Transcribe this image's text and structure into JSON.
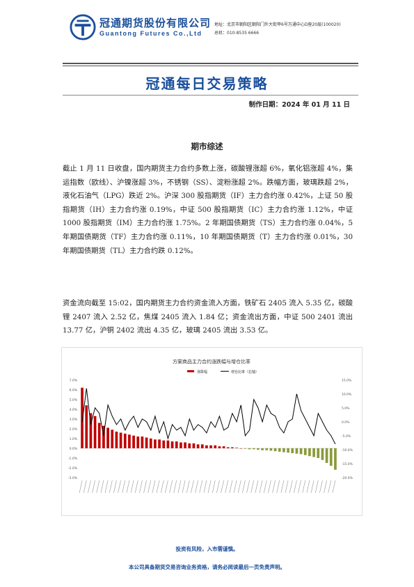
{
  "header": {
    "company_cn": "冠通期货股份有限公司",
    "company_en": "Guantong Futures Co.,Ltd",
    "address": "地址：北京市朝阳区朝阳门外大街甲6号万通中心D座20层(100020)",
    "phone": "总机：010-8535 6666"
  },
  "report_title": "冠通每日交易策略",
  "date_line": "制作日期：2024 年 01 月 11 日",
  "section_title": "期市综述",
  "paragraphs": [
    "截止 1 月 11 日收盘，国内期货主力合约多数上涨，碳酸锂涨超 6%，氧化铝涨超 4%，集运指数（欧线）、沪镍涨超 3%，不锈钢（SS）、淀粉涨超 2%。跌幅方面，玻璃跌超 2%，液化石油气（LPG）跌近 2%。沪深 300 股指期货（IF）主力合约涨 0.42%，上证 50 股指期货（IH）主力合约涨 0.19%，中证 500 股指期货（IC）主力合约涨 1.12%，中证 1000 股指期货（IM）主力合约涨 1.75%。2 年期国债期货（TS）主力合约涨 0.04%，5 年期国债期货（TF）主力合约涨 0.11%，10 年期国债期货（T）主力合约涨 0.01%，30 年期国债期货（TL）主力合约跌 0.12%。",
    "资金流向截至 15:02，国内期货主力合约资金流入方面，铁矿石 2405 流入 5.35 亿，碳酸锂 2407 流入 2.52 亿，焦煤 2405 流入 1.84 亿；资金流出方面，中证 500 2401 流出 13.77 亿，沪铜 2402 流出 4.35 亿，玻璃 2405 流出 3.53 亿。"
  ],
  "chart_data": {
    "type": "bar",
    "title": "方案商品主力合约涨跌幅与增仓比率",
    "legend": [
      "涨跌幅",
      "增仓比率（右轴）"
    ],
    "left_ticks": [
      "7.0%",
      "6.0%",
      "5.0%",
      "4.0%",
      "3.0%",
      "2.0%",
      "1.0%",
      "0.0%",
      "-1.0%",
      "-2.0%",
      "-3.0%"
    ],
    "right_ticks": [
      "15.0%",
      "10.0%",
      "5.0%",
      "0.0%",
      "-5.0%",
      "-10.0%",
      "-15.0%",
      "-20.0%"
    ],
    "ylim": [
      -3,
      7
    ],
    "y2lim": [
      -20,
      15
    ],
    "values": [
      6.2,
      4.4,
      3.6,
      3.3,
      2.6,
      2.3,
      2.1,
      1.9,
      1.7,
      1.6,
      1.5,
      1.4,
      1.3,
      1.2,
      1.2,
      1.1,
      1.0,
      0.9,
      0.9,
      0.8,
      0.8,
      0.7,
      0.7,
      0.6,
      0.6,
      0.5,
      0.5,
      0.4,
      0.4,
      0.3,
      0.3,
      0.3,
      0.2,
      0.2,
      0.1,
      0.1,
      0.05,
      0.0,
      -0.05,
      -0.1,
      -0.1,
      -0.15,
      -0.2,
      -0.2,
      -0.25,
      -0.3,
      -0.35,
      -0.4,
      -0.45,
      -0.5,
      -0.55,
      -0.6,
      -0.7,
      -0.8,
      -0.9,
      -1.0,
      -1.2,
      -1.5,
      -1.8,
      -2.2
    ],
    "series2": [
      0,
      12,
      -1,
      5,
      3,
      -5,
      6,
      2,
      -1,
      1,
      -3,
      0,
      2,
      -2,
      1,
      0,
      -3,
      2,
      -4,
      0,
      -6,
      -1,
      -3,
      -2,
      -5,
      1,
      -3,
      -1,
      -2,
      -4,
      0,
      -2,
      2,
      -3,
      -2,
      3,
      0,
      6,
      -5,
      -3,
      8,
      5,
      0,
      6,
      3,
      2,
      -2,
      -4,
      0,
      1,
      10,
      4,
      1,
      -2,
      -5,
      3,
      0,
      -3,
      -5,
      -8
    ],
    "x_labels_count": 60
  },
  "footer": {
    "risk": "投资有风险，入市需谨慎。",
    "notice": "本公司具备期货交易咨询业务资格，请务必阅读最后一页免责声明。"
  },
  "colors": {
    "brand": "#1a4f9c",
    "bar_up": "#c00000",
    "bar_down": "#8a9a3a",
    "line": "#000000"
  }
}
